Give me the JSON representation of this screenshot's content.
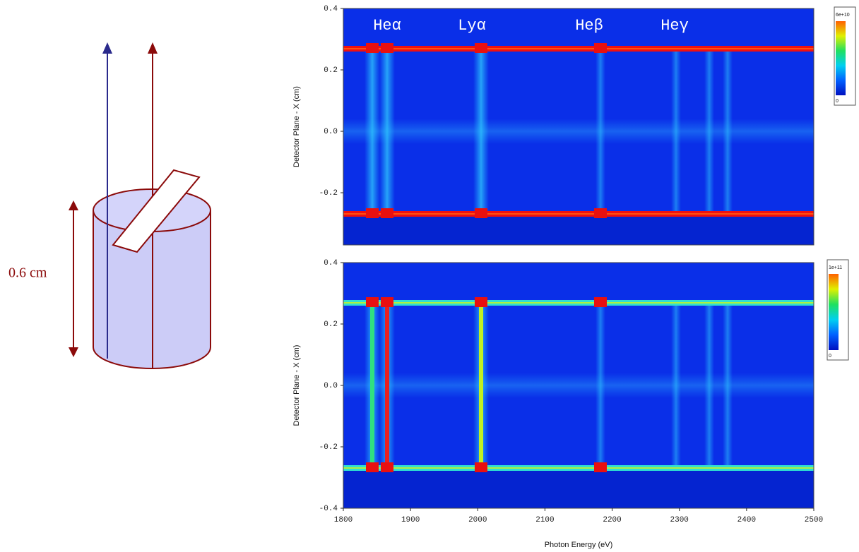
{
  "diagram": {
    "label": "0.6 cm"
  },
  "chart_data": [
    {
      "type": "heatmap",
      "ylabel": "Detector Plane - X (cm)",
      "annotations": [
        "Heα",
        "Lyα",
        "Heβ",
        "Heγ"
      ],
      "xlim": [
        1800,
        2500
      ],
      "ylim": [
        -0.37,
        0.4
      ],
      "yticks": [
        0.4,
        0.2,
        {
          "value": 0,
          "label": "0.0"
        },
        -0.2
      ],
      "colorbar_ticks": [
        0,
        {
          "value": 60000000000,
          "label": "6e+10"
        }
      ]
    },
    {
      "type": "heatmap",
      "ylabel": "Detector Plane - X (cm)",
      "xlabel": "Photon Energy (eV)",
      "xlim": [
        1800,
        2500
      ],
      "ylim": [
        -0.4,
        0.4
      ],
      "xticks": [
        1800,
        1900,
        2000,
        2100,
        2200,
        2300,
        2400,
        2500
      ],
      "yticks": [
        0.4,
        0.2,
        {
          "value": 0,
          "label": "0.0"
        },
        -0.2,
        -0.4
      ],
      "colorbar_ticks": [
        0,
        {
          "value": 100000000000,
          "label": "1e+11"
        }
      ]
    }
  ]
}
